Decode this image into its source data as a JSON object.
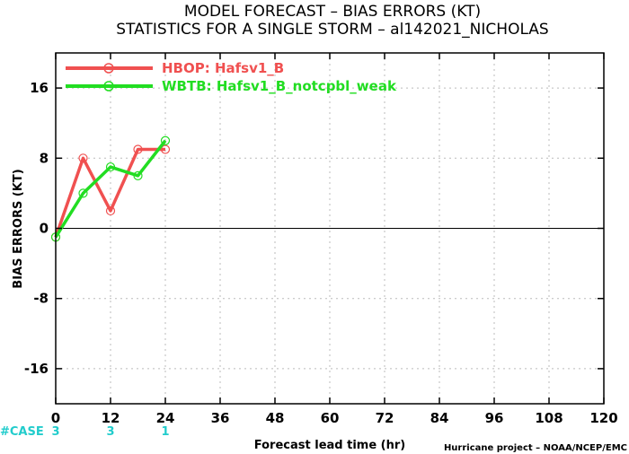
{
  "title_line1": "MODEL FORECAST – BIAS ERRORS (KT)",
  "title_line2": "STATISTICS FOR A SINGLE STORM – al142021_NICHOLAS",
  "footer": "Hurricane project – NOAA/NCEP/EMC",
  "case_label": "#CASE",
  "colors": {
    "hbop": "#f05050",
    "wbtb": "#22dd22",
    "case": "#22cccc",
    "grid": "#bbbbbb"
  },
  "chart_data": {
    "type": "line",
    "xlabel": "Forecast lead time (hr)",
    "ylabel": "BIAS ERRORS (KT)",
    "xlim": [
      0,
      120
    ],
    "ylim": [
      -20,
      20
    ],
    "x_ticks": [
      "0",
      "12",
      "24",
      "36",
      "48",
      "60",
      "72",
      "84",
      "96",
      "108",
      "120"
    ],
    "y_ticks": [
      "16",
      "8",
      "0",
      "-8",
      "-16"
    ],
    "grid": true,
    "legend_position": "top-left",
    "series": [
      {
        "name": "HBOP: Hafsv1_B",
        "x": [
          0,
          6,
          12,
          18,
          24
        ],
        "y": [
          -1,
          8,
          2,
          9,
          9
        ]
      },
      {
        "name": "WBTB: Hafsv1_B_notcpbl_weak",
        "x": [
          0,
          6,
          12,
          18,
          24
        ],
        "y": [
          -1,
          4,
          7,
          6,
          10
        ]
      }
    ],
    "case_counts": [
      {
        "x": 0,
        "label": "3"
      },
      {
        "x": 12,
        "label": "3"
      },
      {
        "x": 24,
        "label": "1"
      }
    ]
  }
}
